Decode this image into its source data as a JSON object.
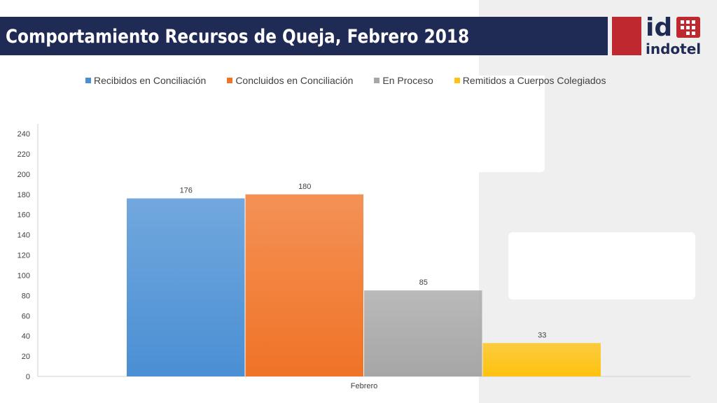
{
  "header": {
    "title": "Comportamiento Recursos de Queja, Febrero 2018"
  },
  "logo": {
    "mark_text": "id",
    "word_text": "indotel",
    "colors": {
      "red": "#c0282f",
      "navy": "#1f2a55"
    }
  },
  "chart_data": {
    "type": "bar",
    "categories": [
      "Febrero"
    ],
    "series": [
      {
        "name": "Recibidos en Conciliación",
        "values": [
          176
        ],
        "color": "#4a8fd4"
      },
      {
        "name": "Concluidos en Conciliación",
        "values": [
          180
        ],
        "color": "#f07326"
      },
      {
        "name": "En Proceso",
        "values": [
          85
        ],
        "color": "#a6a6a6"
      },
      {
        "name": "Remitidos a Cuerpos Colegiados",
        "values": [
          33
        ],
        "color": "#ffc20e"
      }
    ],
    "ylim": [
      0,
      240
    ],
    "yticks": [
      0,
      20,
      40,
      60,
      80,
      100,
      120,
      140,
      160,
      180,
      200,
      220,
      240
    ],
    "grid": false,
    "legend": "top",
    "data_labels": true
  }
}
